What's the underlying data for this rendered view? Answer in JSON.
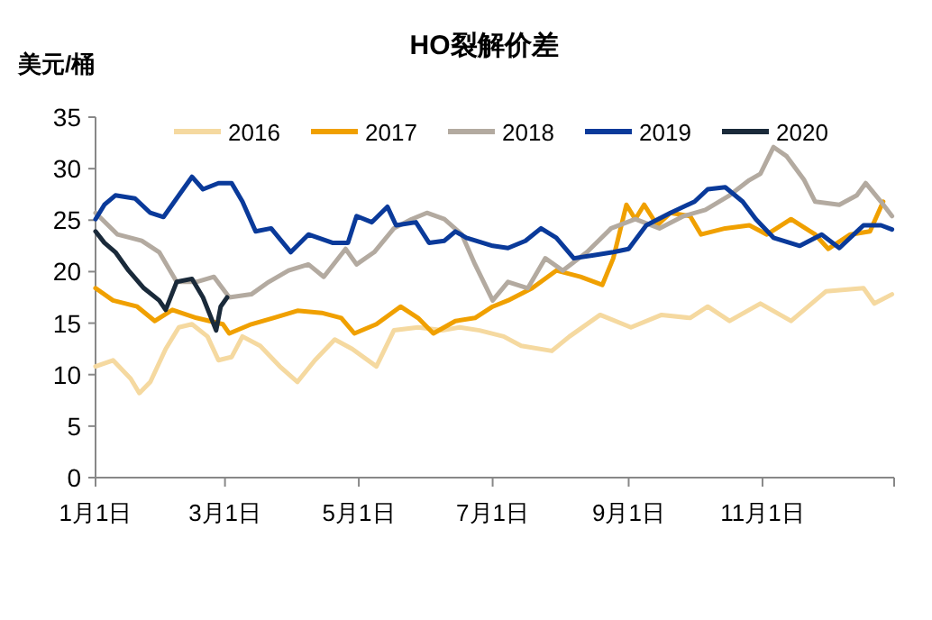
{
  "chart_data": {
    "type": "line",
    "title": "HO裂解价差",
    "ylabel": "美元/桶",
    "xlim": [
      "--01-01",
      "--12-31"
    ],
    "xticks": [
      {
        "value": "--01-01",
        "label": "1月1日"
      },
      {
        "value": "--03-01",
        "label": "3月1日"
      },
      {
        "value": "--05-01",
        "label": "5月1日"
      },
      {
        "value": "--07-01",
        "label": "7月1日"
      },
      {
        "value": "--09-01",
        "label": "9月1日"
      },
      {
        "value": "--11-01",
        "label": "11月1日"
      },
      {
        "value": "--12-31",
        "label": null
      }
    ],
    "ylim": [
      0,
      35
    ],
    "yticks": [
      0,
      5,
      10,
      15,
      20,
      25,
      30,
      35
    ],
    "grid": false,
    "legend": "top",
    "marker": "none",
    "line_style": "solid",
    "series": [
      {
        "name": "2016",
        "color": "#f5d9a0",
        "x": [
          "--01-01",
          "--01-09",
          "--01-17",
          "--01-21",
          "--01-26",
          "--02-02",
          "--02-08",
          "--02-14",
          "--02-21",
          "--02-26",
          "--03-04",
          "--03-09",
          "--03-17",
          "--03-26",
          "--04-03",
          "--04-11",
          "--04-20",
          "--04-28",
          "--05-09",
          "--05-17",
          "--05-28",
          "--06-08",
          "--06-16",
          "--06-25",
          "--07-06",
          "--07-14",
          "--07-28",
          "--08-05",
          "--08-19",
          "--09-02",
          "--09-16",
          "--09-29",
          "--10-07",
          "--10-17",
          "--10-31",
          "--11-14",
          "--11-30",
          "--12-17",
          "--12-22",
          "--12-30"
        ],
        "values": [
          10.8,
          11.4,
          9.6,
          8.2,
          9.3,
          12.5,
          14.6,
          14.9,
          13.7,
          11.4,
          11.7,
          13.7,
          12.8,
          10.8,
          9.3,
          11.4,
          13.4,
          12.5,
          10.8,
          14.3,
          14.6,
          14.3,
          14.6,
          14.3,
          13.7,
          12.8,
          12.3,
          13.7,
          15.8,
          14.6,
          15.8,
          15.5,
          16.6,
          15.2,
          16.9,
          15.2,
          18.1,
          18.4,
          16.9,
          17.8
        ]
      },
      {
        "name": "2017",
        "color": "#f0a000",
        "x": [
          "--01-01",
          "--01-09",
          "--01-20",
          "--01-28",
          "--02-05",
          "--02-16",
          "--02-28",
          "--03-03",
          "--03-13",
          "--03-23",
          "--04-03",
          "--04-14",
          "--04-23",
          "--04-29",
          "--05-09",
          "--05-20",
          "--05-28",
          "--06-04",
          "--06-14",
          "--06-23",
          "--07-01",
          "--07-08",
          "--07-19",
          "--07-30",
          "--08-10",
          "--08-20",
          "--08-25",
          "--08-31",
          "--09-04",
          "--09-08",
          "--09-14",
          "--09-20",
          "--09-29",
          "--10-04",
          "--10-15",
          "--10-26",
          "--11-03",
          "--11-14",
          "--11-25",
          "--12-01",
          "--12-11",
          "--12-20",
          "--12-26"
        ],
        "values": [
          18.4,
          17.2,
          16.6,
          15.2,
          16.3,
          15.5,
          14.9,
          14.0,
          14.9,
          15.5,
          16.2,
          16.0,
          15.5,
          14.0,
          14.9,
          16.6,
          15.5,
          14.0,
          15.2,
          15.5,
          16.6,
          17.2,
          18.4,
          20.1,
          19.5,
          18.7,
          21.3,
          26.5,
          25.1,
          26.5,
          24.5,
          25.7,
          25.4,
          23.6,
          24.2,
          24.5,
          23.6,
          25.1,
          23.6,
          22.2,
          23.6,
          23.9,
          26.8
        ]
      },
      {
        "name": "2018",
        "color": "#b3aaa0",
        "x": [
          "--01-01",
          "--01-11",
          "--01-22",
          "--01-30",
          "--02-07",
          "--02-16",
          "--02-24",
          "--03-03",
          "--03-13",
          "--03-21",
          "--03-30",
          "--04-08",
          "--04-15",
          "--04-25",
          "--04-30",
          "--05-08",
          "--05-17",
          "--05-25",
          "--06-01",
          "--06-09",
          "--06-17",
          "--06-23",
          "--07-01",
          "--07-08",
          "--07-17",
          "--07-25",
          "--08-02",
          "--08-13",
          "--08-24",
          "--09-04",
          "--09-15",
          "--09-26",
          "--10-06",
          "--10-17",
          "--10-26",
          "--10-31",
          "--11-06",
          "--11-12",
          "--11-20",
          "--11-25",
          "--12-06",
          "--12-14",
          "--12-18",
          "--12-25",
          "--12-30"
        ],
        "values": [
          25.7,
          23.6,
          23.0,
          21.9,
          19.0,
          19.0,
          19.5,
          17.5,
          17.8,
          19.0,
          20.1,
          20.7,
          19.5,
          22.2,
          20.7,
          21.9,
          24.2,
          25.1,
          25.7,
          25.1,
          23.6,
          20.7,
          17.2,
          19.0,
          18.4,
          21.3,
          20.1,
          21.9,
          24.2,
          25.1,
          24.2,
          25.4,
          26.0,
          27.4,
          28.9,
          29.5,
          32.1,
          31.2,
          28.9,
          26.8,
          26.5,
          27.4,
          28.6,
          26.8,
          25.4
        ]
      },
      {
        "name": "2019",
        "color": "#0a3a9a",
        "x": [
          "--01-01",
          "--01-05",
          "--01-10",
          "--01-19",
          "--01-26",
          "--02-01",
          "--02-08",
          "--02-14",
          "--02-19",
          "--02-26",
          "--03-04",
          "--03-09",
          "--03-15",
          "--03-22",
          "--03-31",
          "--04-08",
          "--04-19",
          "--04-26",
          "--04-30",
          "--05-07",
          "--05-14",
          "--05-18",
          "--05-27",
          "--06-02",
          "--06-09",
          "--06-14",
          "--06-19",
          "--07-01",
          "--07-08",
          "--07-16",
          "--07-23",
          "--07-30",
          "--08-07",
          "--08-16",
          "--08-25",
          "--09-01",
          "--09-09",
          "--09-20",
          "--10-01",
          "--10-07",
          "--10-15",
          "--10-23",
          "--10-29",
          "--11-06",
          "--11-18",
          "--11-28",
          "--12-06",
          "--12-17",
          "--12-25",
          "--12-30"
        ],
        "values": [
          25.1,
          26.5,
          27.4,
          27.1,
          25.7,
          25.3,
          27.4,
          29.2,
          28.0,
          28.6,
          28.6,
          26.8,
          23.9,
          24.2,
          21.9,
          23.6,
          22.8,
          22.8,
          25.4,
          24.8,
          26.3,
          24.5,
          24.8,
          22.8,
          23.0,
          23.9,
          23.3,
          22.5,
          22.3,
          23.0,
          24.2,
          23.3,
          21.3,
          21.6,
          21.9,
          22.2,
          24.5,
          25.7,
          26.8,
          28.0,
          28.2,
          26.8,
          25.1,
          23.3,
          22.5,
          23.6,
          22.3,
          24.5,
          24.5,
          24.1
        ]
      },
      {
        "name": "2020",
        "color": "#1a2a3a",
        "x": [
          "--01-01",
          "--01-05",
          "--01-10",
          "--01-16",
          "--01-23",
          "--01-30",
          "--02-02",
          "--02-07",
          "--02-14",
          "--02-19",
          "--02-25",
          "--02-27",
          "--03-02"
        ],
        "values": [
          23.9,
          22.8,
          21.9,
          20.1,
          18.4,
          17.2,
          16.3,
          19.0,
          19.3,
          17.5,
          14.3,
          16.6,
          17.5
        ]
      }
    ]
  }
}
